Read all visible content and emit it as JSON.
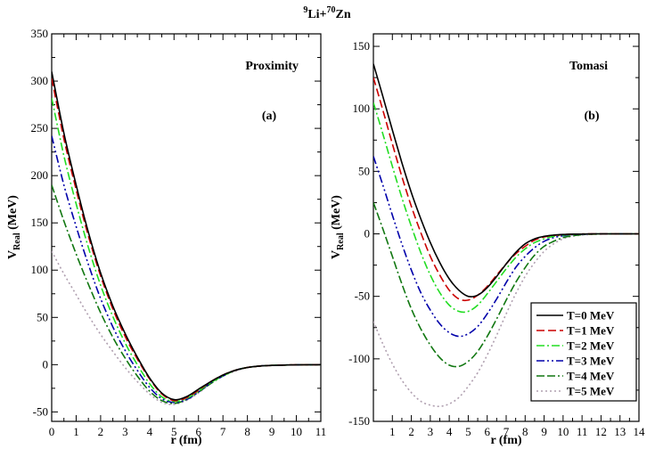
{
  "figure": {
    "title_main": "Li+",
    "title_mass1": "9",
    "title_mass2": "70",
    "title_end": "Zn"
  },
  "series_styles": [
    {
      "name": "T=0 MeV",
      "color": "#000000",
      "dash": "solid"
    },
    {
      "name": "T=1 MeV",
      "color": "#cc0000",
      "dash": "dashed"
    },
    {
      "name": "T=2 MeV",
      "color": "#22dd22",
      "dash": "dash-dot"
    },
    {
      "name": "T=3 MeV",
      "color": "#0000aa",
      "dash": "dash-dot-dot"
    },
    {
      "name": "T=4 MeV",
      "color": "#117711",
      "dash": "dash-dash-dot"
    },
    {
      "name": "T=5 MeV",
      "color": "#b0a0b0",
      "dash": "dotted"
    }
  ],
  "chart_data": [
    {
      "type": "line",
      "panel_id": "a",
      "panel_label": "(a)",
      "model_label": "Proximity",
      "xlabel": "r (fm)",
      "ylabel_main": "V",
      "ylabel_sub": "Real",
      "ylabel_unit": " (MeV)",
      "xlim": [
        0,
        11
      ],
      "ylim": [
        -60,
        350
      ],
      "xticks": [
        0,
        1,
        2,
        3,
        4,
        5,
        6,
        7,
        8,
        9,
        10,
        11
      ],
      "yticks": [
        -50,
        0,
        50,
        100,
        150,
        200,
        250,
        300,
        350
      ],
      "x": [
        0,
        0.5,
        1,
        1.5,
        2,
        2.5,
        3,
        3.5,
        4,
        4.5,
        5,
        5.5,
        6,
        6.5,
        7,
        7.5,
        8,
        8.5,
        9,
        9.5,
        10,
        10.5,
        11
      ],
      "series": [
        {
          "name": "T=0 MeV",
          "values": [
            310,
            245,
            190,
            140,
            97,
            62,
            33,
            8,
            -14,
            -30,
            -37,
            -34,
            -26,
            -18,
            -11,
            -6,
            -3,
            -1.5,
            -0.8,
            -0.4,
            -0.2,
            -0.1,
            0
          ]
        },
        {
          "name": "T=1 MeV",
          "values": [
            303,
            239,
            185,
            136,
            94,
            59,
            30,
            6,
            -15,
            -31,
            -38,
            -35,
            -27,
            -18,
            -11,
            -6,
            -3,
            -1.5,
            -0.8,
            -0.4,
            -0.2,
            -0.1,
            0
          ]
        },
        {
          "name": "T=2 MeV",
          "values": [
            282,
            221,
            170,
            124,
            84,
            51,
            23,
            0,
            -20,
            -34,
            -39,
            -36,
            -28,
            -19,
            -12,
            -6,
            -3,
            -1.5,
            -0.8,
            -0.4,
            -0.2,
            -0.1,
            0
          ]
        },
        {
          "name": "T=3 MeV",
          "values": [
            242,
            190,
            146,
            106,
            70,
            40,
            15,
            -6,
            -24,
            -36,
            -40,
            -37,
            -29,
            -19,
            -12,
            -6,
            -3,
            -1.5,
            -0.8,
            -0.4,
            -0.2,
            -0.1,
            0
          ]
        },
        {
          "name": "T=4 MeV",
          "values": [
            190,
            152,
            117,
            85,
            55,
            29,
            7,
            -12,
            -28,
            -38,
            -41,
            -37,
            -29,
            -20,
            -12,
            -6,
            -3,
            -1.5,
            -0.8,
            -0.4,
            -0.2,
            -0.1,
            0
          ]
        },
        {
          "name": "T=5 MeV",
          "values": [
            120,
            96,
            74,
            52,
            32,
            14,
            -3,
            -18,
            -31,
            -40,
            -42,
            -38,
            -30,
            -20,
            -12,
            -7,
            -3,
            -1.5,
            -0.8,
            -0.4,
            -0.2,
            -0.1,
            0
          ]
        }
      ]
    },
    {
      "type": "line",
      "panel_id": "b",
      "panel_label": "(b)",
      "model_label": "Tomasi",
      "xlabel": "r (fm)",
      "ylabel_main": "V",
      "ylabel_sub": "Real",
      "ylabel_unit": " (MeV)",
      "xlim": [
        0,
        14
      ],
      "ylim": [
        -150,
        160
      ],
      "xticks": [
        1,
        2,
        3,
        4,
        5,
        6,
        7,
        8,
        9,
        10,
        11,
        12,
        13,
        14
      ],
      "yticks": [
        -150,
        -100,
        -50,
        0,
        50,
        100,
        150
      ],
      "x": [
        0,
        0.5,
        1,
        1.5,
        2,
        2.5,
        3,
        3.5,
        4,
        4.5,
        5,
        5.5,
        6,
        6.5,
        7,
        7.5,
        8,
        8.5,
        9,
        9.5,
        10,
        10.5,
        11,
        11.5,
        12,
        12.5,
        13,
        13.5,
        14
      ],
      "series": [
        {
          "name": "T=0 MeV",
          "values": [
            136,
            110,
            83,
            57,
            33,
            12,
            -7,
            -23,
            -36,
            -45,
            -50,
            -49,
            -43,
            -34,
            -24,
            -15,
            -8,
            -4,
            -2,
            -1,
            -0.5,
            -0.2,
            -0.1,
            0,
            0,
            0,
            0,
            0,
            0
          ]
        },
        {
          "name": "T=1 MeV",
          "values": [
            125,
            99,
            72,
            46,
            22,
            1,
            -18,
            -33,
            -45,
            -52,
            -53,
            -49,
            -42,
            -33,
            -24,
            -16,
            -10,
            -5,
            -2.5,
            -1.2,
            -0.6,
            -0.3,
            -0.1,
            0,
            0,
            0,
            0,
            0,
            0
          ]
        },
        {
          "name": "T=2 MeV",
          "values": [
            105,
            80,
            54,
            29,
            6,
            -15,
            -33,
            -47,
            -57,
            -62,
            -62,
            -57,
            -48,
            -38,
            -28,
            -19,
            -12,
            -7,
            -4,
            -2,
            -1,
            -0.5,
            -0.2,
            -0.1,
            0,
            0,
            0,
            0,
            0
          ]
        },
        {
          "name": "T=3 MeV",
          "values": [
            62,
            39,
            15,
            -8,
            -29,
            -47,
            -61,
            -72,
            -79,
            -82,
            -80,
            -74,
            -64,
            -52,
            -39,
            -27,
            -18,
            -11,
            -6,
            -3,
            -1.5,
            -0.7,
            -0.3,
            -0.1,
            0,
            0,
            0,
            0,
            0
          ]
        },
        {
          "name": "T=4 MeV",
          "values": [
            25,
            4,
            -18,
            -40,
            -60,
            -76,
            -89,
            -99,
            -105,
            -106,
            -102,
            -94,
            -82,
            -68,
            -53,
            -39,
            -27,
            -17,
            -10,
            -6,
            -3,
            -1.5,
            -0.7,
            -0.3,
            -0.1,
            0,
            0,
            0,
            0
          ]
        },
        {
          "name": "T=5 MeV",
          "values": [
            -70,
            -88,
            -104,
            -117,
            -127,
            -134,
            -137,
            -138,
            -136,
            -131,
            -122,
            -111,
            -97,
            -81,
            -64,
            -48,
            -34,
            -23,
            -14,
            -8,
            -4,
            -2,
            -1,
            -0.5,
            -0.2,
            -0.1,
            0,
            0,
            0
          ]
        }
      ]
    }
  ]
}
